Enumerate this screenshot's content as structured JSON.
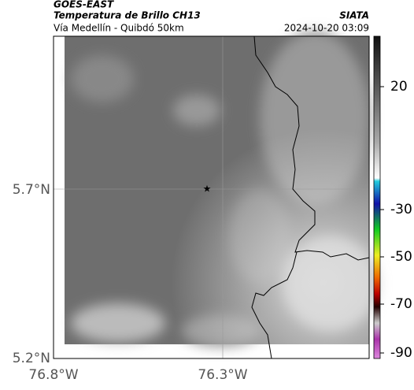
{
  "header": {
    "source": "GOES-EAST",
    "title": "Temperatura de Brillo CH13",
    "subtitle": "Vía Medellín - Quibdó 50km",
    "agency": "SIATA",
    "timestamp": "2024-10-20 03:09"
  },
  "map": {
    "lat_labels": [
      "5.7°N",
      "5.2°N"
    ],
    "lon_labels": [
      "76.8°W",
      "76.3°W"
    ]
  },
  "colorbar": {
    "ticks": [
      20,
      -30,
      -50,
      -70,
      -90
    ]
  }
}
